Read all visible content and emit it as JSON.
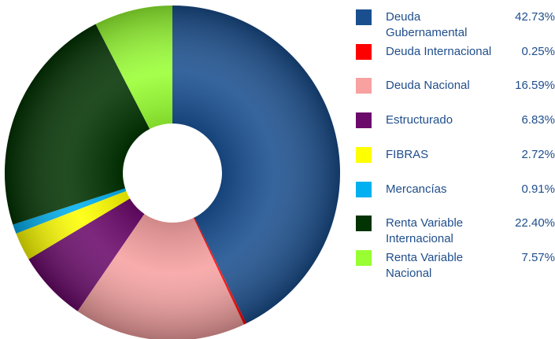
{
  "chart_data": {
    "type": "donut",
    "categories": [
      "Deuda Gubernamental",
      "Deuda Internacional",
      "Deuda Nacional",
      "Estructurado",
      "FIBRAS",
      "Mercancías",
      "Renta Variable Internacional",
      "Renta Variable Nacional"
    ],
    "values": [
      42.73,
      0.25,
      16.59,
      6.83,
      2.72,
      0.91,
      22.4,
      7.57
    ],
    "value_labels": [
      "42.73%",
      "0.25%",
      "16.59%",
      "6.83%",
      "2.72%",
      "0.91%",
      "22.40%",
      "7.57%"
    ],
    "colors": [
      "#1a4f8f",
      "#ff0000",
      "#f7a1a1",
      "#6b0a6b",
      "#ffff00",
      "#00b0f0",
      "#023302",
      "#99ff33"
    ],
    "legend": "right"
  }
}
